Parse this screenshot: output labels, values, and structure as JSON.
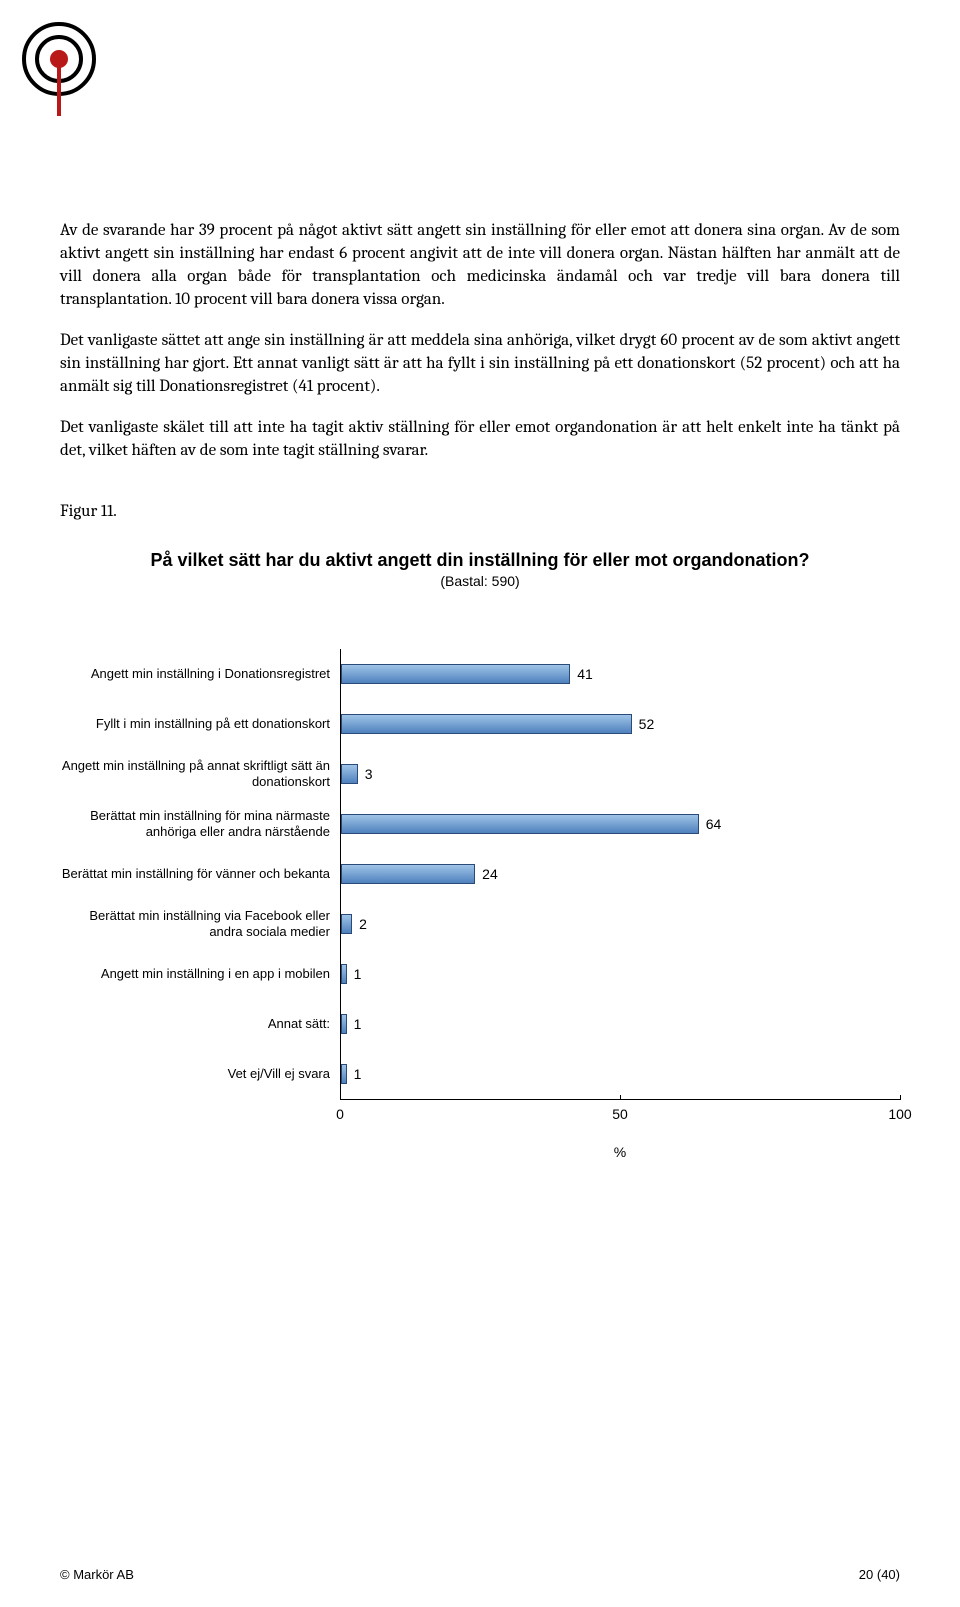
{
  "paragraphs": {
    "p1": "Av de svarande har 39 procent på något aktivt sätt angett sin inställning för eller emot att donera sina organ. Av de som aktivt angett sin inställning har endast 6 procent angivit att de inte vill donera organ. Nästan hälften har anmält att de vill donera alla organ både för transplantation och medicinska ändamål och var tredje vill bara donera till transplantation. 10 procent vill bara donera vissa organ.",
    "p2": "Det vanligaste sättet att ange sin inställning är att meddela sina anhöriga, vilket drygt 60 procent av de som aktivt angett sin inställning har gjort. Ett annat vanligt sätt är att ha fyllt i sin inställning på ett donationskort (52 procent) och att ha anmält sig till Donationsregistret (41 procent).",
    "p3": "Det vanligaste skälet till att inte ha tagit aktiv ställning för eller emot organdonation är att helt enkelt inte ha tänkt på det, vilket häften av de som inte tagit ställning svarar."
  },
  "figure_label": "Figur 11.",
  "chart": {
    "type": "bar-horizontal",
    "title": "På vilket sätt har du aktivt angett din inställning för eller mot organdonation?",
    "subtitle": "(Bastal: 590)",
    "x_axis_label": "%",
    "xlim_max": 100,
    "x_ticks": [
      0,
      50,
      100
    ],
    "bar_fill_top": "#9fc4e7",
    "bar_fill_bottom": "#4f81bd",
    "bar_border": "#2a4a7a",
    "value_fontsize": 14,
    "label_fontsize": 13,
    "rows": [
      {
        "label": "Angett min inställning i Donationsregistret",
        "value": 41
      },
      {
        "label": "Fyllt i min inställning på ett donationskort",
        "value": 52
      },
      {
        "label": "Angett min inställning på annat skriftligt sätt än donationskort",
        "value": 3
      },
      {
        "label": "Berättat min inställning för mina närmaste anhöriga eller andra närstående",
        "value": 64
      },
      {
        "label": "Berättat min inställning för vänner och bekanta",
        "value": 24
      },
      {
        "label": "Berättat min inställning via Facebook eller andra sociala medier",
        "value": 2
      },
      {
        "label": "Angett min inställning i en app i mobilen",
        "value": 1
      },
      {
        "label": "Annat sätt:",
        "value": 1
      },
      {
        "label": "Vet ej/Vill ej svara",
        "value": 1
      }
    ]
  },
  "footer": {
    "left": "© Markör AB",
    "right": "20 (40)"
  },
  "logo": {
    "ring_color": "#000000",
    "dot_color": "#b91818"
  }
}
